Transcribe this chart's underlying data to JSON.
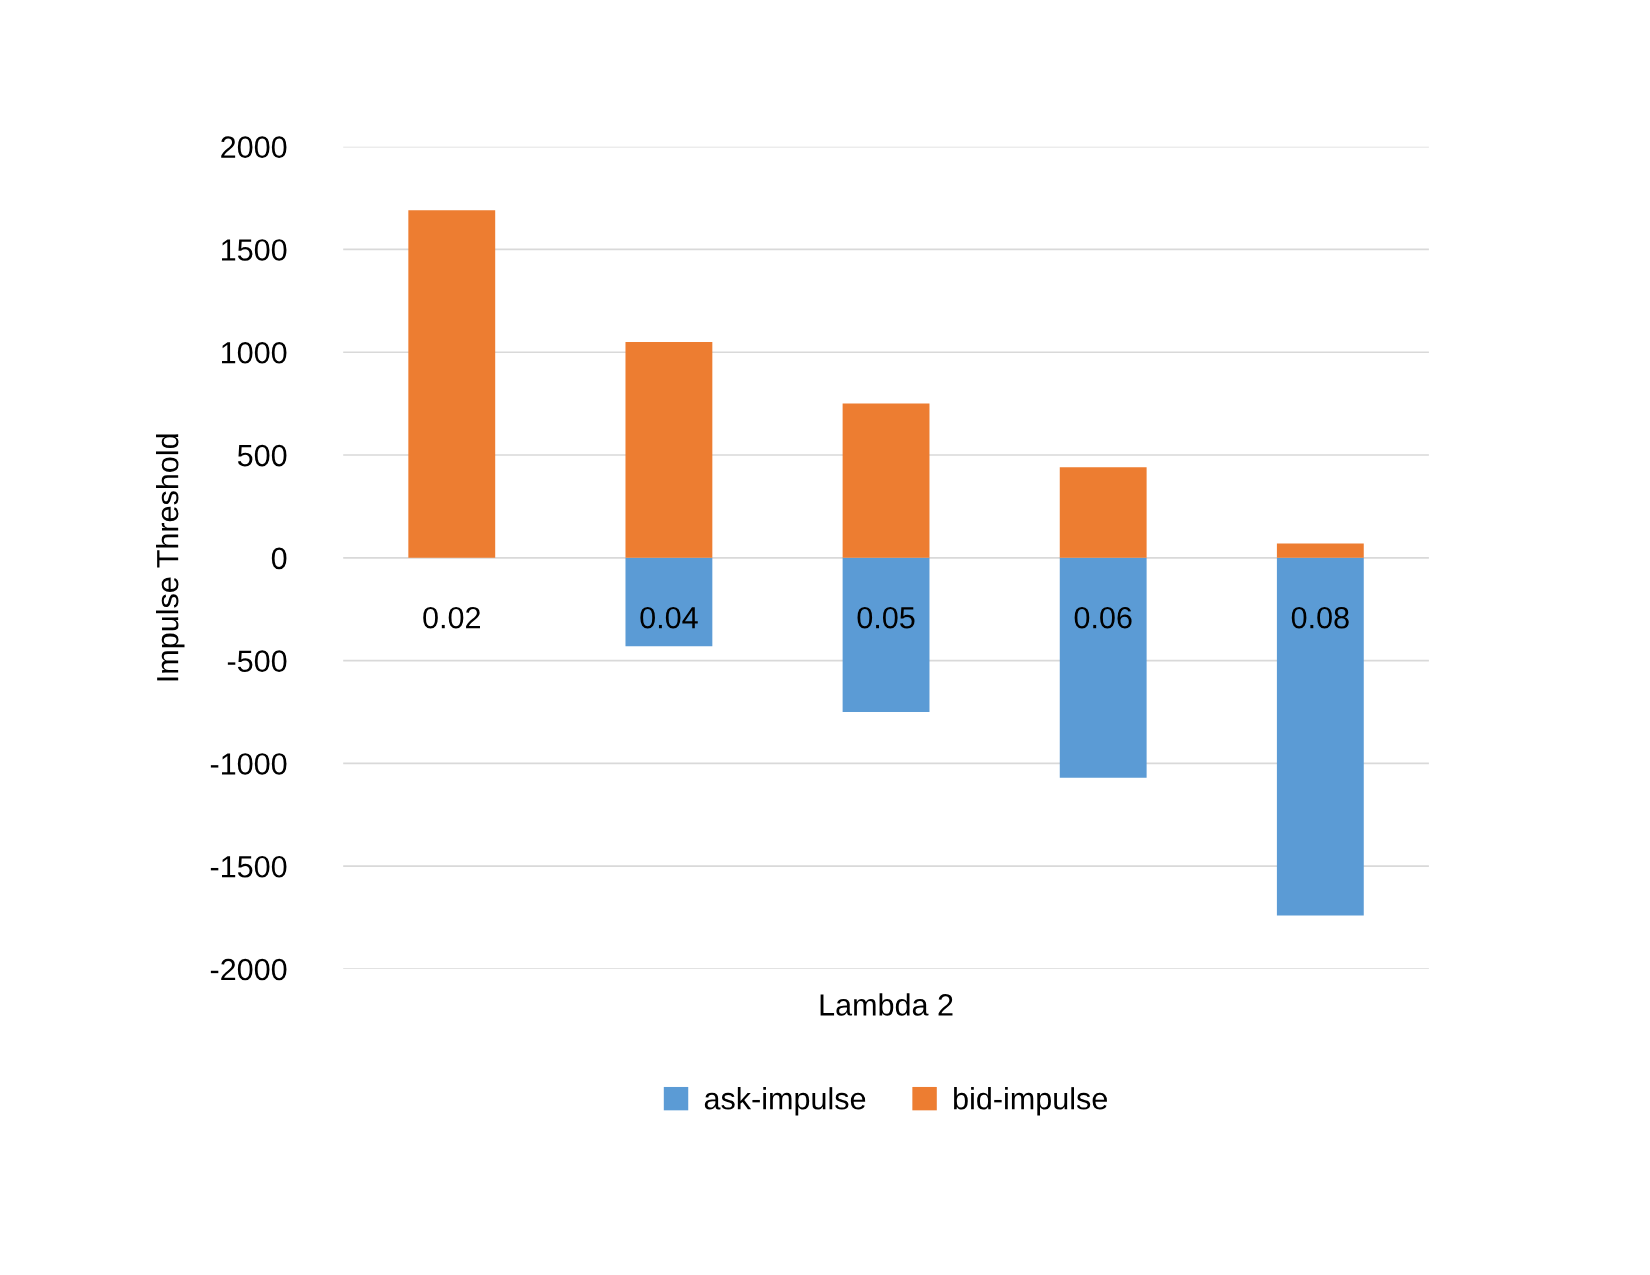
{
  "chart_data": {
    "type": "bar",
    "stacked": true,
    "xlabel": "Lambda 2",
    "ylabel": "Impulse Threshold",
    "categories": [
      "0.02",
      "0.04",
      "0.05",
      "0.06",
      "0.08"
    ],
    "series": [
      {
        "name": "ask-impulse",
        "color": "#5b9bd5",
        "values": [
          0,
          -430,
          -750,
          -1070,
          -1740
        ]
      },
      {
        "name": "bid-impulse",
        "color": "#ed7d31",
        "values": [
          1690,
          1050,
          750,
          440,
          70
        ]
      }
    ],
    "ylim": [
      -2000,
      2000
    ],
    "yticks": [
      -2000,
      -1500,
      -1000,
      -500,
      0,
      500,
      1000,
      1500,
      2000
    ],
    "grid": "y",
    "legend": "bottom"
  }
}
